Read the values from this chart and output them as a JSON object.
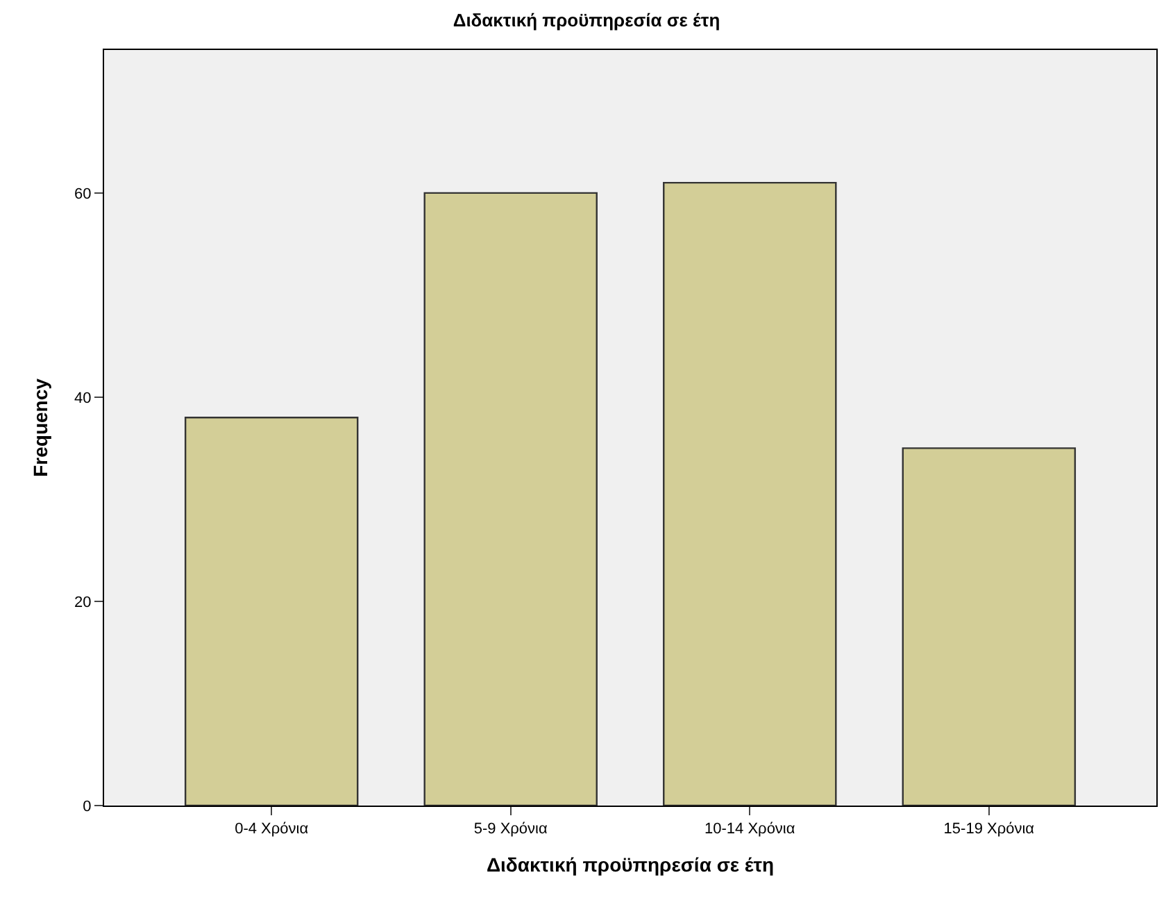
{
  "chart_data": {
    "type": "bar",
    "title": "Διδακτική προϋπηρεσία σε έτη",
    "xlabel": "Διδακτική προϋπηρεσία σε έτη",
    "ylabel": "Frequency",
    "categories": [
      "0-4 Χρόνια",
      "5-9 Χρόνια",
      "10-14 Χρόνια",
      "15-19 Χρόνια"
    ],
    "values": [
      38,
      60,
      61,
      35
    ],
    "color": "#d3ce97",
    "ylim": [
      0,
      74
    ],
    "yticks": [
      0,
      20,
      40,
      60
    ],
    "grid": false
  }
}
